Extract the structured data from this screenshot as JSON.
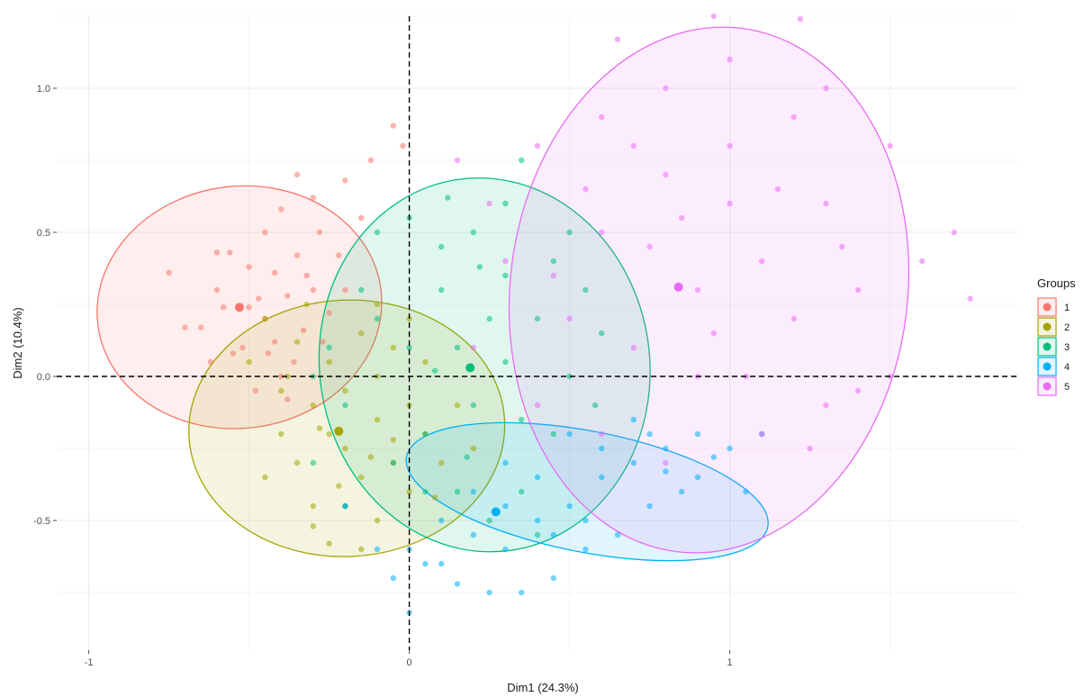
{
  "chart_data": {
    "type": "scatter",
    "xlabel": "Dim1 (24.3%)",
    "ylabel": "Dim2 (10.4%)",
    "xlim": [
      -1.1,
      1.9
    ],
    "ylim": [
      -0.95,
      1.25
    ],
    "x_ticks": [
      {
        "value": -1,
        "label": "-1"
      },
      {
        "value": 0,
        "label": "0"
      },
      {
        "value": 1,
        "label": "1"
      }
    ],
    "y_ticks": [
      {
        "value": -0.5,
        "label": "-0.5"
      },
      {
        "value": 0.0,
        "label": "0.0"
      },
      {
        "value": 0.5,
        "label": "0.5"
      },
      {
        "value": 1.0,
        "label": "1.0"
      }
    ],
    "grid": true,
    "reference_lines": {
      "x": 0,
      "y": 0,
      "style": "dashed"
    },
    "legend": {
      "title": "Groups",
      "position": "right"
    },
    "series": [
      {
        "name": "1",
        "color": "#F8766D",
        "centroid": [
          -0.53,
          0.24
        ],
        "ellipse": {
          "center": [
            -0.53,
            0.24
          ],
          "rx": 0.445,
          "ry": 0.42,
          "rotation_deg": 7
        },
        "points": [
          [
            -0.75,
            0.36
          ],
          [
            -0.6,
            0.43
          ],
          [
            -0.58,
            0.24
          ],
          [
            -0.5,
            0.24
          ],
          [
            -0.45,
            0.2
          ],
          [
            -0.52,
            0.1
          ],
          [
            -0.42,
            0.12
          ],
          [
            -0.65,
            0.17
          ],
          [
            -0.7,
            0.17
          ],
          [
            -0.4,
            0.0
          ],
          [
            -0.48,
            -0.05
          ],
          [
            -0.55,
            0.08
          ],
          [
            -0.45,
            0.5
          ],
          [
            -0.42,
            0.36
          ],
          [
            -0.35,
            0.42
          ],
          [
            -0.3,
            0.3
          ],
          [
            -0.28,
            0.5
          ],
          [
            -0.38,
            0.28
          ],
          [
            -0.33,
            0.16
          ],
          [
            -0.25,
            0.22
          ],
          [
            -0.2,
            0.3
          ],
          [
            -0.22,
            0.42
          ],
          [
            -0.15,
            0.55
          ],
          [
            -0.3,
            0.62
          ],
          [
            -0.2,
            0.68
          ],
          [
            -0.12,
            0.75
          ],
          [
            -0.05,
            0.87
          ],
          [
            -0.02,
            0.8
          ],
          [
            -0.35,
            0.7
          ],
          [
            -0.4,
            0.58
          ],
          [
            -0.6,
            0.3
          ],
          [
            -0.62,
            0.05
          ],
          [
            -0.38,
            -0.08
          ],
          [
            -0.47,
            0.27
          ],
          [
            -0.32,
            0.35
          ],
          [
            -0.27,
            0.12
          ],
          [
            -0.56,
            0.43
          ],
          [
            -0.44,
            0.08
          ],
          [
            -0.36,
            0.05
          ],
          [
            -0.5,
            0.38
          ]
        ]
      },
      {
        "name": "2",
        "color": "#A3A500",
        "centroid": [
          -0.22,
          -0.19
        ],
        "ellipse": {
          "center": [
            -0.195,
            -0.18
          ],
          "rx": 0.493,
          "ry": 0.445,
          "rotation_deg": 3
        },
        "points": [
          [
            -0.5,
            0.05
          ],
          [
            -0.4,
            -0.05
          ],
          [
            -0.3,
            -0.1
          ],
          [
            -0.2,
            -0.05
          ],
          [
            -0.1,
            0.0
          ],
          [
            0.0,
            -0.1
          ],
          [
            0.05,
            -0.2
          ],
          [
            -0.05,
            -0.3
          ],
          [
            -0.15,
            -0.35
          ],
          [
            -0.25,
            -0.2
          ],
          [
            -0.35,
            -0.3
          ],
          [
            -0.2,
            -0.45
          ],
          [
            -0.3,
            -0.52
          ],
          [
            -0.1,
            -0.5
          ],
          [
            0.0,
            -0.4
          ],
          [
            0.1,
            -0.3
          ],
          [
            0.2,
            -0.25
          ],
          [
            0.15,
            -0.1
          ],
          [
            -0.45,
            0.2
          ],
          [
            -0.35,
            0.12
          ],
          [
            -0.25,
            0.05
          ],
          [
            -0.15,
            0.15
          ],
          [
            -0.05,
            0.1
          ],
          [
            0.05,
            0.05
          ],
          [
            -0.4,
            -0.2
          ],
          [
            -0.45,
            -0.35
          ],
          [
            -0.3,
            -0.45
          ],
          [
            -0.2,
            -0.25
          ],
          [
            -0.1,
            -0.15
          ],
          [
            -0.15,
            -0.6
          ],
          [
            -0.25,
            -0.58
          ],
          [
            0.0,
            0.2
          ],
          [
            -0.1,
            0.25
          ],
          [
            -0.32,
            0.25
          ],
          [
            -0.22,
            -0.38
          ],
          [
            -0.05,
            -0.22
          ],
          [
            0.08,
            -0.42
          ],
          [
            -0.38,
            0.0
          ],
          [
            -0.28,
            -0.18
          ],
          [
            -0.12,
            -0.28
          ]
        ]
      },
      {
        "name": "3",
        "color": "#00BF7D",
        "centroid": [
          0.19,
          0.03
        ],
        "ellipse": {
          "center": [
            0.235,
            0.04
          ],
          "rx": 0.515,
          "ry": 0.65,
          "rotation_deg": 8
        },
        "points": [
          [
            0.2,
            0.5
          ],
          [
            0.3,
            0.6
          ],
          [
            0.35,
            0.75
          ],
          [
            0.1,
            0.3
          ],
          [
            0.0,
            0.1
          ],
          [
            -0.1,
            0.2
          ],
          [
            -0.2,
            -0.1
          ],
          [
            -0.3,
            -0.3
          ],
          [
            -0.25,
            0.1
          ],
          [
            0.05,
            -0.2
          ],
          [
            0.15,
            -0.4
          ],
          [
            0.25,
            -0.5
          ],
          [
            0.35,
            -0.4
          ],
          [
            0.45,
            -0.2
          ],
          [
            0.5,
            0.0
          ],
          [
            0.4,
            0.2
          ],
          [
            0.3,
            0.35
          ],
          [
            0.15,
            0.1
          ],
          [
            0.2,
            -0.1
          ],
          [
            0.1,
            0.45
          ],
          [
            0.0,
            0.55
          ],
          [
            -0.1,
            0.5
          ],
          [
            -0.15,
            0.3
          ],
          [
            0.25,
            0.2
          ],
          [
            0.45,
            0.4
          ],
          [
            0.55,
            0.3
          ],
          [
            0.6,
            0.15
          ],
          [
            0.05,
            -0.4
          ],
          [
            -0.05,
            -0.3
          ],
          [
            0.3,
            0.05
          ],
          [
            0.35,
            -0.15
          ],
          [
            0.18,
            -0.28
          ],
          [
            -0.2,
            -0.45
          ],
          [
            0.4,
            -0.55
          ],
          [
            0.12,
            0.62
          ],
          [
            0.58,
            -0.1
          ],
          [
            0.08,
            0.02
          ],
          [
            -0.3,
            0.0
          ],
          [
            0.5,
            0.5
          ],
          [
            0.22,
            0.38
          ]
        ]
      },
      {
        "name": "4",
        "color": "#00B0F6",
        "centroid": [
          0.27,
          -0.47
        ],
        "ellipse": {
          "center": [
            0.555,
            -0.4
          ],
          "rx": 0.574,
          "ry": 0.21,
          "rotation_deg": -11
        },
        "points": [
          [
            -0.05,
            -0.7
          ],
          [
            0.0,
            -0.6
          ],
          [
            0.1,
            -0.65
          ],
          [
            0.2,
            -0.55
          ],
          [
            0.3,
            -0.6
          ],
          [
            0.4,
            -0.5
          ],
          [
            0.5,
            -0.45
          ],
          [
            0.6,
            -0.35
          ],
          [
            0.7,
            -0.3
          ],
          [
            0.8,
            -0.25
          ],
          [
            0.9,
            -0.2
          ],
          [
            1.0,
            -0.25
          ],
          [
            1.1,
            -0.2
          ],
          [
            0.85,
            -0.4
          ],
          [
            0.75,
            -0.45
          ],
          [
            0.65,
            -0.55
          ],
          [
            0.55,
            -0.6
          ],
          [
            0.45,
            -0.7
          ],
          [
            0.35,
            -0.75
          ],
          [
            0.25,
            -0.75
          ],
          [
            0.15,
            -0.72
          ],
          [
            0.05,
            -0.65
          ],
          [
            -0.1,
            -0.6
          ],
          [
            -0.2,
            -0.45
          ],
          [
            0.3,
            -0.3
          ],
          [
            0.5,
            -0.2
          ],
          [
            0.7,
            -0.15
          ],
          [
            0.9,
            -0.35
          ],
          [
            1.05,
            -0.4
          ],
          [
            0.2,
            -0.4
          ],
          [
            0.4,
            -0.35
          ],
          [
            0.6,
            -0.25
          ],
          [
            0.8,
            -0.33
          ],
          [
            0.95,
            -0.28
          ],
          [
            0.1,
            -0.5
          ],
          [
            0.3,
            -0.45
          ],
          [
            0.55,
            -0.5
          ],
          [
            0.75,
            -0.2
          ],
          [
            0.0,
            -0.82
          ],
          [
            0.45,
            -0.55
          ]
        ]
      },
      {
        "name": "5",
        "color": "#E76BF3",
        "centroid": [
          0.84,
          0.31
        ],
        "ellipse": {
          "center": [
            0.935,
            0.3
          ],
          "rx": 0.62,
          "ry": 0.915,
          "rotation_deg": -7
        },
        "points": [
          [
            0.5,
            0.2
          ],
          [
            0.6,
            0.5
          ],
          [
            0.7,
            0.8
          ],
          [
            0.8,
            1.0
          ],
          [
            1.0,
            1.1
          ],
          [
            1.2,
            0.9
          ],
          [
            1.3,
            0.6
          ],
          [
            1.4,
            0.3
          ],
          [
            1.5,
            0.0
          ],
          [
            1.3,
            -0.1
          ],
          [
            1.1,
            -0.2
          ],
          [
            0.9,
            0.0
          ],
          [
            0.7,
            0.1
          ],
          [
            0.9,
            0.3
          ],
          [
            1.1,
            0.4
          ],
          [
            1.2,
            0.2
          ],
          [
            1.0,
            0.6
          ],
          [
            0.8,
            0.7
          ],
          [
            0.6,
            0.9
          ],
          [
            0.4,
            0.8
          ],
          [
            0.3,
            0.4
          ],
          [
            0.2,
            0.1
          ],
          [
            0.4,
            -0.1
          ],
          [
            0.6,
            -0.2
          ],
          [
            0.8,
            -0.3
          ],
          [
            1.0,
            0.8
          ],
          [
            1.3,
            1.0
          ],
          [
            1.6,
            0.4
          ],
          [
            1.7,
            0.5
          ],
          [
            1.75,
            0.27
          ],
          [
            1.5,
            0.8
          ],
          [
            1.4,
            -0.05
          ],
          [
            0.95,
            0.15
          ],
          [
            0.75,
            0.45
          ],
          [
            1.15,
            0.65
          ],
          [
            0.55,
            0.65
          ],
          [
            0.25,
            0.6
          ],
          [
            1.25,
            -0.25
          ],
          [
            0.65,
            1.17
          ],
          [
            0.85,
            0.55
          ],
          [
            1.05,
            0.0
          ],
          [
            0.45,
            0.35
          ],
          [
            1.35,
            0.45
          ],
          [
            0.15,
            0.75
          ],
          [
            1.22,
            1.24
          ],
          [
            0.95,
            1.25
          ]
        ]
      }
    ]
  }
}
